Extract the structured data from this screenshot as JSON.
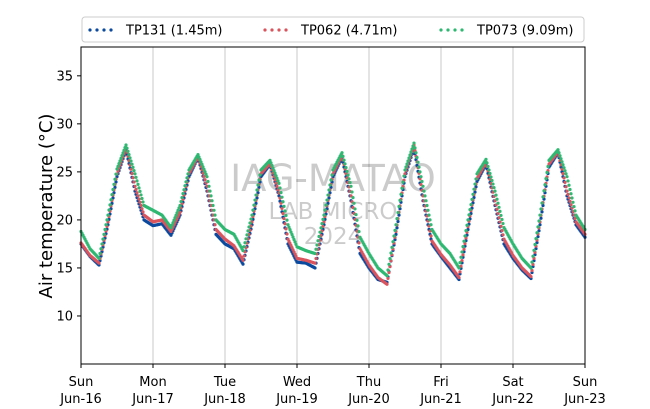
{
  "chart_data": {
    "type": "line",
    "title": "",
    "xlabel": "",
    "ylabel": "Air temperature (°C)",
    "ylim": [
      5,
      38
    ],
    "yticks": [
      10,
      15,
      20,
      25,
      30,
      35
    ],
    "xlim": [
      "2024-06-16",
      "2024-06-23"
    ],
    "xticks": [
      {
        "date": "2024-06-16",
        "day": "Sun",
        "label": "Jun-16"
      },
      {
        "date": "2024-06-17",
        "day": "Mon",
        "label": "Jun-17"
      },
      {
        "date": "2024-06-18",
        "day": "Tue",
        "label": "Jun-18"
      },
      {
        "date": "2024-06-19",
        "day": "Wed",
        "label": "Jun-19"
      },
      {
        "date": "2024-06-20",
        "day": "Thu",
        "label": "Jun-20"
      },
      {
        "date": "2024-06-21",
        "day": "Fri",
        "label": "Jun-21"
      },
      {
        "date": "2024-06-22",
        "day": "Sat",
        "label": "Jun-22"
      },
      {
        "date": "2024-06-23",
        "day": "Sun",
        "label": "Jun-23"
      }
    ],
    "grid": "vertical",
    "legend_position": "top",
    "line_style": "dotted",
    "watermark": [
      "IAG-MATAO",
      "LAB MICRO",
      "2024"
    ],
    "series": [
      {
        "name": "TP131 (1.45m)",
        "color": "#0b4a9e",
        "points": [
          [
            "2024-06-16 00:00",
            17.5
          ],
          [
            "2024-06-16 03:00",
            16.2
          ],
          [
            "2024-06-16 06:00",
            15.3
          ],
          [
            "2024-06-16 09:00",
            19.5
          ],
          [
            "2024-06-16 12:00",
            24.5
          ],
          [
            "2024-06-16 15:00",
            27.3
          ],
          [
            "2024-06-16 18:00",
            23.0
          ],
          [
            "2024-06-16 21:00",
            20.0
          ],
          [
            "2024-06-17 00:00",
            19.4
          ],
          [
            "2024-06-17 03:00",
            19.6
          ],
          [
            "2024-06-17 06:00",
            18.4
          ],
          [
            "2024-06-17 09:00",
            20.5
          ],
          [
            "2024-06-17 12:00",
            24.5
          ],
          [
            "2024-06-17 15:00",
            26.5
          ],
          [
            "2024-06-17 18:00",
            23.0
          ],
          [
            "2024-06-17 21:00",
            18.5
          ],
          [
            "2024-06-18 00:00",
            17.5
          ],
          [
            "2024-06-18 03:00",
            17.0
          ],
          [
            "2024-06-18 06:00",
            15.4
          ],
          [
            "2024-06-18 09:00",
            19.5
          ],
          [
            "2024-06-18 12:00",
            24.5
          ],
          [
            "2024-06-18 15:00",
            25.8
          ],
          [
            "2024-06-18 18:00",
            22.5
          ],
          [
            "2024-06-18 21:00",
            17.5
          ],
          [
            "2024-06-19 00:00",
            15.6
          ],
          [
            "2024-06-19 03:00",
            15.5
          ],
          [
            "2024-06-19 06:00",
            15.0
          ],
          [
            "2024-06-19 09:00",
            19.5
          ],
          [
            "2024-06-19 12:00",
            24.5
          ],
          [
            "2024-06-19 15:00",
            26.5
          ],
          [
            "2024-06-19 18:00",
            22.0
          ],
          [
            "2024-06-19 21:00",
            16.5
          ],
          [
            "2024-06-20 00:00",
            15.0
          ],
          [
            "2024-06-20 03:00",
            13.8
          ],
          [
            "2024-06-20 06:00",
            13.5
          ],
          [
            "2024-06-20 09:00",
            18.5
          ],
          [
            "2024-06-20 12:00",
            24.5
          ],
          [
            "2024-06-20 15:00",
            27.5
          ],
          [
            "2024-06-20 18:00",
            22.0
          ],
          [
            "2024-06-20 21:00",
            17.5
          ],
          [
            "2024-06-21 00:00",
            16.2
          ],
          [
            "2024-06-21 03:00",
            15.0
          ],
          [
            "2024-06-21 06:00",
            13.8
          ],
          [
            "2024-06-21 09:00",
            19.0
          ],
          [
            "2024-06-21 12:00",
            24.0
          ],
          [
            "2024-06-21 15:00",
            25.8
          ],
          [
            "2024-06-21 18:00",
            21.5
          ],
          [
            "2024-06-21 21:00",
            17.5
          ],
          [
            "2024-06-22 00:00",
            16.0
          ],
          [
            "2024-06-22 03:00",
            14.8
          ],
          [
            "2024-06-22 06:00",
            13.9
          ],
          [
            "2024-06-22 09:00",
            19.5
          ],
          [
            "2024-06-22 12:00",
            25.5
          ],
          [
            "2024-06-22 15:00",
            27.0
          ],
          [
            "2024-06-22 18:00",
            22.5
          ],
          [
            "2024-06-22 21:00",
            19.5
          ],
          [
            "2024-06-23 00:00",
            18.2
          ]
        ]
      },
      {
        "name": "TP062 (4.71m)",
        "color": "#d9545d",
        "points": [
          [
            "2024-06-16 00:00",
            17.6
          ],
          [
            "2024-06-16 03:00",
            16.3
          ],
          [
            "2024-06-16 06:00",
            15.5
          ],
          [
            "2024-06-16 09:00",
            19.8
          ],
          [
            "2024-06-16 12:00",
            24.8
          ],
          [
            "2024-06-16 15:00",
            27.5
          ],
          [
            "2024-06-16 18:00",
            23.5
          ],
          [
            "2024-06-16 21:00",
            20.5
          ],
          [
            "2024-06-17 00:00",
            19.8
          ],
          [
            "2024-06-17 03:00",
            20.0
          ],
          [
            "2024-06-17 06:00",
            18.8
          ],
          [
            "2024-06-17 09:00",
            20.8
          ],
          [
            "2024-06-17 12:00",
            24.8
          ],
          [
            "2024-06-17 15:00",
            26.6
          ],
          [
            "2024-06-17 18:00",
            23.5
          ],
          [
            "2024-06-17 21:00",
            19.0
          ],
          [
            "2024-06-18 00:00",
            18.0
          ],
          [
            "2024-06-18 03:00",
            17.3
          ],
          [
            "2024-06-18 06:00",
            15.8
          ],
          [
            "2024-06-18 09:00",
            19.8
          ],
          [
            "2024-06-18 12:00",
            24.8
          ],
          [
            "2024-06-18 15:00",
            25.9
          ],
          [
            "2024-06-18 18:00",
            22.8
          ],
          [
            "2024-06-18 21:00",
            18.0
          ],
          [
            "2024-06-19 00:00",
            16.0
          ],
          [
            "2024-06-19 03:00",
            15.8
          ],
          [
            "2024-06-19 06:00",
            15.5
          ],
          [
            "2024-06-19 09:00",
            19.8
          ],
          [
            "2024-06-19 12:00",
            24.8
          ],
          [
            "2024-06-19 15:00",
            26.7
          ],
          [
            "2024-06-19 18:00",
            22.5
          ],
          [
            "2024-06-19 21:00",
            17.0
          ],
          [
            "2024-06-20 00:00",
            15.3
          ],
          [
            "2024-06-20 03:00",
            14.0
          ],
          [
            "2024-06-20 06:00",
            13.3
          ],
          [
            "2024-06-20 09:00",
            18.8
          ],
          [
            "2024-06-20 12:00",
            24.8
          ],
          [
            "2024-06-20 15:00",
            27.8
          ],
          [
            "2024-06-20 18:00",
            22.5
          ],
          [
            "2024-06-20 21:00",
            17.8
          ],
          [
            "2024-06-21 00:00",
            16.4
          ],
          [
            "2024-06-21 03:00",
            15.3
          ],
          [
            "2024-06-21 06:00",
            14.0
          ],
          [
            "2024-06-21 09:00",
            19.3
          ],
          [
            "2024-06-21 12:00",
            24.3
          ],
          [
            "2024-06-21 15:00",
            26.0
          ],
          [
            "2024-06-21 18:00",
            22.0
          ],
          [
            "2024-06-21 21:00",
            18.0
          ],
          [
            "2024-06-22 00:00",
            16.3
          ],
          [
            "2024-06-22 03:00",
            15.0
          ],
          [
            "2024-06-22 06:00",
            14.1
          ],
          [
            "2024-06-22 09:00",
            19.8
          ],
          [
            "2024-06-22 12:00",
            25.8
          ],
          [
            "2024-06-22 15:00",
            27.1
          ],
          [
            "2024-06-22 18:00",
            23.0
          ],
          [
            "2024-06-22 21:00",
            19.8
          ],
          [
            "2024-06-23 00:00",
            18.5
          ]
        ]
      },
      {
        "name": "TP073 (9.09m)",
        "color": "#2eb872",
        "points": [
          [
            "2024-06-16 00:00",
            18.8
          ],
          [
            "2024-06-16 03:00",
            17.0
          ],
          [
            "2024-06-16 06:00",
            16.0
          ],
          [
            "2024-06-16 09:00",
            20.5
          ],
          [
            "2024-06-16 12:00",
            25.3
          ],
          [
            "2024-06-16 15:00",
            27.8
          ],
          [
            "2024-06-16 18:00",
            24.8
          ],
          [
            "2024-06-16 21:00",
            21.5
          ],
          [
            "2024-06-17 00:00",
            21.0
          ],
          [
            "2024-06-17 03:00",
            20.5
          ],
          [
            "2024-06-17 06:00",
            19.2
          ],
          [
            "2024-06-17 09:00",
            21.5
          ],
          [
            "2024-06-17 12:00",
            25.2
          ],
          [
            "2024-06-17 15:00",
            26.8
          ],
          [
            "2024-06-17 18:00",
            24.5
          ],
          [
            "2024-06-17 21:00",
            20.0
          ],
          [
            "2024-06-18 00:00",
            19.0
          ],
          [
            "2024-06-18 03:00",
            18.5
          ],
          [
            "2024-06-18 06:00",
            16.8
          ],
          [
            "2024-06-18 09:00",
            20.5
          ],
          [
            "2024-06-18 12:00",
            25.2
          ],
          [
            "2024-06-18 15:00",
            26.2
          ],
          [
            "2024-06-18 18:00",
            23.8
          ],
          [
            "2024-06-18 21:00",
            19.5
          ],
          [
            "2024-06-19 00:00",
            17.2
          ],
          [
            "2024-06-19 03:00",
            16.8
          ],
          [
            "2024-06-19 06:00",
            16.5
          ],
          [
            "2024-06-19 09:00",
            20.5
          ],
          [
            "2024-06-19 12:00",
            25.2
          ],
          [
            "2024-06-19 15:00",
            27.0
          ],
          [
            "2024-06-19 18:00",
            23.5
          ],
          [
            "2024-06-19 21:00",
            18.2
          ],
          [
            "2024-06-20 00:00",
            16.5
          ],
          [
            "2024-06-20 03:00",
            15.0
          ],
          [
            "2024-06-20 06:00",
            14.2
          ],
          [
            "2024-06-20 09:00",
            19.5
          ],
          [
            "2024-06-20 12:00",
            25.2
          ],
          [
            "2024-06-20 15:00",
            28.0
          ],
          [
            "2024-06-20 18:00",
            23.5
          ],
          [
            "2024-06-20 21:00",
            19.0
          ],
          [
            "2024-06-21 00:00",
            17.5
          ],
          [
            "2024-06-21 03:00",
            16.5
          ],
          [
            "2024-06-21 06:00",
            15.0
          ],
          [
            "2024-06-21 09:00",
            20.0
          ],
          [
            "2024-06-21 12:00",
            24.8
          ],
          [
            "2024-06-21 15:00",
            26.3
          ],
          [
            "2024-06-21 18:00",
            23.0
          ],
          [
            "2024-06-21 21:00",
            19.2
          ],
          [
            "2024-06-22 00:00",
            17.5
          ],
          [
            "2024-06-22 03:00",
            16.0
          ],
          [
            "2024-06-22 06:00",
            15.0
          ],
          [
            "2024-06-22 09:00",
            20.5
          ],
          [
            "2024-06-22 12:00",
            26.2
          ],
          [
            "2024-06-22 15:00",
            27.3
          ],
          [
            "2024-06-22 18:00",
            24.5
          ],
          [
            "2024-06-22 21:00",
            20.5
          ],
          [
            "2024-06-23 00:00",
            19.0
          ]
        ]
      }
    ]
  }
}
